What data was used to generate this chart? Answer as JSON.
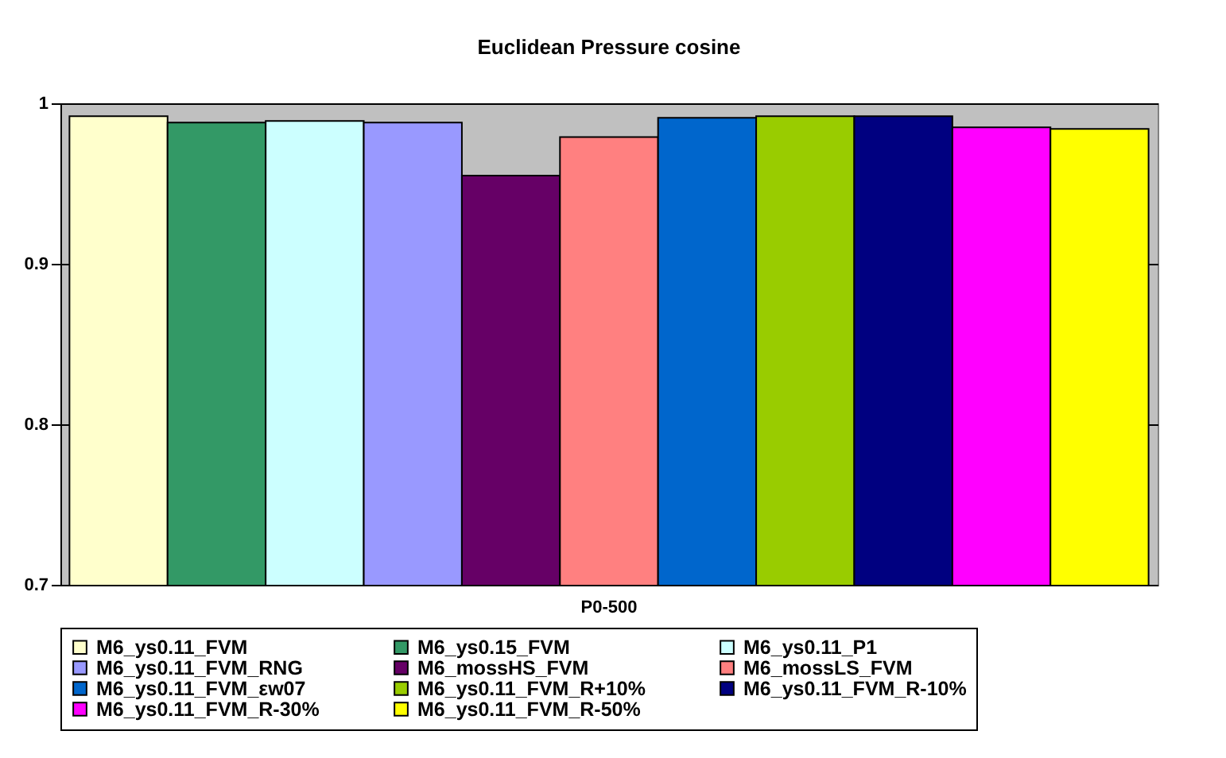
{
  "chart_data": {
    "type": "bar",
    "title": "Euclidean Pressure cosine",
    "categories": [
      "P0-500"
    ],
    "series": [
      {
        "name": "M6_ys0.11_FVM",
        "color": "#ffffcc",
        "values": [
          0.992
        ]
      },
      {
        "name": "M6_ys0.15_FVM",
        "color": "#339966",
        "values": [
          0.988
        ]
      },
      {
        "name": "M6_ys0.11_P1",
        "color": "#ccffff",
        "values": [
          0.989
        ]
      },
      {
        "name": "M6_ys0.11_FVM_RNG",
        "color": "#9999ff",
        "values": [
          0.988
        ]
      },
      {
        "name": "M6_mossHS_FVM",
        "color": "#660066",
        "values": [
          0.955
        ]
      },
      {
        "name": "M6_mossLS_FVM",
        "color": "#ff8080",
        "values": [
          0.979
        ]
      },
      {
        "name": "M6_ys0.11_FVM_εw07",
        "color": "#0066cc",
        "values": [
          0.991
        ]
      },
      {
        "name": "M6_ys0.11_FVM_R+10%",
        "color": "#99cc00",
        "values": [
          0.992
        ]
      },
      {
        "name": "M6_ys0.11_FVM_R-10%",
        "color": "#000080",
        "values": [
          0.992
        ]
      },
      {
        "name": "M6_ys0.11_FVM_R-30%",
        "color": "#ff00ff",
        "values": [
          0.985
        ]
      },
      {
        "name": "M6_ys0.11_FVM_R-50%",
        "color": "#ffff00",
        "values": [
          0.984
        ]
      }
    ],
    "ylim": [
      0.7,
      1
    ],
    "yticks": [
      0.7,
      0.8,
      0.9,
      1
    ],
    "grid": "y",
    "legend": "bottom"
  }
}
